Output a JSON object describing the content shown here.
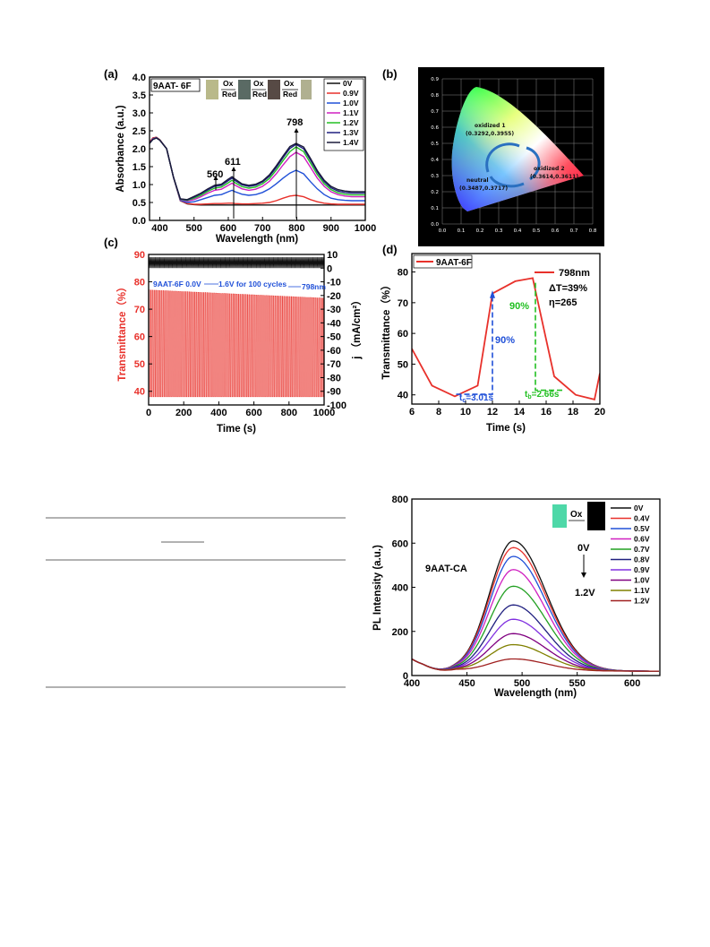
{
  "colors": {
    "black": "#000000",
    "red": "#e8312b",
    "blue": "#2050d8",
    "green": "#22c022",
    "magenta": "#d020c0",
    "navy": "#202080"
  },
  "panel_a": {
    "label": "(a)",
    "sample": "9AAT- 6F",
    "ox1": "Ox",
    "red1": "Red",
    "ox2": "Ox",
    "red2": "Red",
    "ox3": "Ox",
    "red3": "Red",
    "peaks": {
      "p560": "560",
      "p611": "611",
      "p798": "798"
    },
    "legend": [
      "0V",
      "0.9V",
      "1.0V",
      "1.1V",
      "1.2V",
      "1.3V",
      "1.4V"
    ],
    "xlabel": "Wavelength (nm)",
    "ylabel": "Absorbance (a.u.)",
    "xticks": [
      "400",
      "500",
      "600",
      "700",
      "800",
      "900",
      "1000"
    ],
    "yticks": [
      "0.0",
      "0.5",
      "1.0",
      "1.5",
      "2.0",
      "2.5",
      "3.0",
      "3.5",
      "4.0"
    ]
  },
  "panel_b": {
    "label": "(b)",
    "ox1_name": "oxidized 1",
    "ox1_coord": "(0.3292,0.3955)",
    "ox2_name": "oxidized 2",
    "ox2_coord": "(0.3614,0.3611)",
    "neu_name": "neutral",
    "neu_coord": "(0.3487,0.3717)",
    "xticks": [
      "0.0",
      "0.1",
      "0.2",
      "0.3",
      "0.4",
      "0.5",
      "0.6",
      "0.7",
      "0.8"
    ],
    "yticks": [
      "0.0",
      "0.1",
      "0.2",
      "0.3",
      "0.4",
      "0.5",
      "0.6",
      "0.7",
      "0.8",
      "0.9"
    ]
  },
  "panel_c": {
    "label": "(c)",
    "annotation_left": "9AAT-6F 0.0V",
    "annotation_mid": "1.6V for 100 cycles",
    "annotation_right": "798nm",
    "xlabel": "Time (s)",
    "ylabel_left": "Transmittance（%）",
    "ylabel_right": "j （mA/cm²）",
    "xticks": [
      "0",
      "200",
      "400",
      "600",
      "800",
      "1000"
    ],
    "yticks_left": [
      "40",
      "50",
      "60",
      "70",
      "80",
      "90"
    ],
    "yticks_right": [
      "10",
      "0",
      "-10",
      "-20",
      "-30",
      "-40",
      "-50",
      "-60",
      "-70",
      "-80",
      "-90",
      "-100"
    ]
  },
  "panel_d": {
    "label": "(d)",
    "legend_left": "9AAT-6F",
    "legend_right": "798nm",
    "delta_t": "ΔT=39%",
    "eta": "η=265",
    "pct_blue": "90%",
    "pct_green": "90%",
    "tc": "tᴄ=3.01s",
    "tb": "tₙ=2.66s",
    "tc_text": "t",
    "tc_sub": "c",
    "tc_val": "=3.01s",
    "tb_text": "t",
    "tb_sub": "b",
    "tb_val": "=2.66s",
    "xlabel": "Time (s)",
    "ylabel": "Transmittance（%）",
    "xticks": [
      "6",
      "8",
      "10",
      "12",
      "14",
      "16",
      "18",
      "20"
    ],
    "yticks": [
      "40",
      "50",
      "60",
      "70",
      "80"
    ]
  },
  "panel_e": {
    "sample": "9AAT-CA",
    "ox": "Ox",
    "arrow_top": "0V",
    "arrow_bottom": "1.2V",
    "legend": [
      "0V",
      "0.4V",
      "0.5V",
      "0.6V",
      "0.7V",
      "0.8V",
      "0.9V",
      "1.0V",
      "1.1V",
      "1.2V"
    ],
    "xlabel": "Wavelength (nm)",
    "ylabel": "PL Intensity (a.u.)",
    "xticks": [
      "400",
      "450",
      "500",
      "550",
      "600"
    ],
    "yticks": [
      "0",
      "200",
      "400",
      "600",
      "800"
    ]
  },
  "chart_data": [
    {
      "type": "line",
      "panel": "a",
      "xlabel": "Wavelength (nm)",
      "ylabel": "Absorbance (a.u.)",
      "xlim": [
        370,
        1000
      ],
      "ylim": [
        0,
        4.0
      ],
      "series": [
        {
          "name": "0V",
          "color": "#111111",
          "x": [
            370,
            380,
            390,
            400,
            420,
            440,
            460,
            480,
            500,
            520,
            540,
            560,
            580,
            600,
            611,
            620,
            640,
            660,
            680,
            700,
            720,
            740,
            760,
            780,
            798,
            820,
            840,
            860,
            880,
            900,
            920,
            940,
            960,
            980,
            1000
          ],
          "y": [
            2.18,
            2.3,
            2.32,
            2.25,
            2.0,
            1.2,
            0.55,
            0.46,
            0.44,
            0.43,
            0.43,
            0.43,
            0.43,
            0.43,
            0.43,
            0.43,
            0.43,
            0.43,
            0.43,
            0.43,
            0.43,
            0.43,
            0.43,
            0.43,
            0.43,
            0.43,
            0.43,
            0.43,
            0.43,
            0.43,
            0.43,
            0.43,
            0.43,
            0.43,
            0.43
          ]
        },
        {
          "name": "0.9V",
          "color": "#e8312b",
          "x": [
            370,
            380,
            390,
            400,
            420,
            440,
            460,
            480,
            500,
            520,
            540,
            560,
            580,
            600,
            611,
            620,
            640,
            660,
            680,
            700,
            720,
            740,
            760,
            780,
            798,
            820,
            840,
            860,
            880,
            900,
            920,
            940,
            960,
            980,
            1000
          ],
          "y": [
            2.18,
            2.3,
            2.32,
            2.25,
            2.0,
            1.2,
            0.55,
            0.47,
            0.45,
            0.45,
            0.46,
            0.47,
            0.47,
            0.48,
            0.48,
            0.47,
            0.46,
            0.46,
            0.47,
            0.48,
            0.5,
            0.55,
            0.62,
            0.68,
            0.7,
            0.66,
            0.58,
            0.52,
            0.48,
            0.46,
            0.45,
            0.45,
            0.45,
            0.45,
            0.45
          ]
        },
        {
          "name": "1.0V",
          "color": "#2050d8",
          "x": [
            370,
            380,
            390,
            400,
            420,
            440,
            460,
            480,
            500,
            520,
            540,
            560,
            580,
            600,
            611,
            620,
            640,
            660,
            680,
            700,
            720,
            740,
            760,
            780,
            798,
            820,
            840,
            860,
            880,
            900,
            920,
            940,
            960,
            980,
            1000
          ],
          "y": [
            2.16,
            2.28,
            2.31,
            2.24,
            2.0,
            1.2,
            0.56,
            0.5,
            0.52,
            0.58,
            0.64,
            0.7,
            0.72,
            0.8,
            0.84,
            0.8,
            0.73,
            0.7,
            0.72,
            0.78,
            0.88,
            1.02,
            1.18,
            1.32,
            1.4,
            1.3,
            1.08,
            0.88,
            0.72,
            0.62,
            0.58,
            0.56,
            0.55,
            0.55,
            0.55
          ]
        },
        {
          "name": "1.1V",
          "color": "#d020c0",
          "x": [
            370,
            380,
            390,
            400,
            420,
            440,
            460,
            480,
            500,
            520,
            540,
            560,
            580,
            600,
            611,
            620,
            640,
            660,
            680,
            700,
            720,
            740,
            760,
            780,
            798,
            820,
            840,
            860,
            880,
            900,
            920,
            940,
            960,
            980,
            1000
          ],
          "y": [
            2.16,
            2.27,
            2.3,
            2.24,
            2.0,
            1.2,
            0.58,
            0.54,
            0.58,
            0.66,
            0.76,
            0.84,
            0.87,
            0.98,
            1.04,
            0.98,
            0.88,
            0.84,
            0.87,
            0.95,
            1.09,
            1.3,
            1.55,
            1.78,
            1.9,
            1.78,
            1.48,
            1.18,
            0.95,
            0.8,
            0.72,
            0.68,
            0.66,
            0.66,
            0.66
          ]
        },
        {
          "name": "1.2V",
          "color": "#22c022",
          "x": [
            370,
            380,
            390,
            400,
            420,
            440,
            460,
            480,
            500,
            520,
            540,
            560,
            580,
            600,
            611,
            620,
            640,
            660,
            680,
            700,
            720,
            740,
            760,
            780,
            798,
            820,
            840,
            860,
            880,
            900,
            920,
            940,
            960,
            980,
            1000
          ],
          "y": [
            2.15,
            2.26,
            2.3,
            2.24,
            2.0,
            1.2,
            0.59,
            0.56,
            0.62,
            0.7,
            0.81,
            0.9,
            0.93,
            1.05,
            1.12,
            1.05,
            0.94,
            0.9,
            0.93,
            1.02,
            1.17,
            1.4,
            1.67,
            1.92,
            2.05,
            1.92,
            1.6,
            1.28,
            1.02,
            0.86,
            0.77,
            0.73,
            0.71,
            0.71,
            0.71
          ]
        },
        {
          "name": "1.3V",
          "color": "#202080",
          "x": [
            370,
            380,
            390,
            400,
            420,
            440,
            460,
            480,
            500,
            520,
            540,
            560,
            580,
            600,
            611,
            620,
            640,
            660,
            680,
            700,
            720,
            740,
            760,
            780,
            798,
            820,
            840,
            860,
            880,
            900,
            920,
            940,
            960,
            980,
            1000
          ],
          "y": [
            2.15,
            2.26,
            2.3,
            2.24,
            2.0,
            1.2,
            0.6,
            0.57,
            0.65,
            0.74,
            0.85,
            0.95,
            0.98,
            1.11,
            1.18,
            1.11,
            0.99,
            0.95,
            0.98,
            1.07,
            1.23,
            1.47,
            1.75,
            2.01,
            2.12,
            2.0,
            1.68,
            1.35,
            1.08,
            0.91,
            0.82,
            0.78,
            0.76,
            0.76,
            0.76
          ]
        },
        {
          "name": "1.4V",
          "color": "#1a1a3a",
          "x": [
            370,
            380,
            390,
            400,
            420,
            440,
            460,
            480,
            500,
            520,
            540,
            560,
            580,
            600,
            611,
            620,
            640,
            660,
            680,
            700,
            720,
            740,
            760,
            780,
            798,
            820,
            840,
            860,
            880,
            900,
            920,
            940,
            960,
            980,
            1000
          ],
          "y": [
            2.15,
            2.26,
            2.3,
            2.24,
            2.0,
            1.2,
            0.6,
            0.58,
            0.67,
            0.76,
            0.88,
            0.98,
            1.01,
            1.15,
            1.22,
            1.15,
            1.02,
            0.98,
            1.01,
            1.1,
            1.27,
            1.52,
            1.8,
            2.06,
            2.15,
            2.05,
            1.73,
            1.39,
            1.12,
            0.95,
            0.86,
            0.82,
            0.8,
            0.8,
            0.8
          ]
        }
      ]
    },
    {
      "type": "line",
      "panel": "c",
      "xlabel": "Time (s)",
      "xlim": [
        0,
        1000
      ],
      "ylim_left": [
        35,
        90
      ],
      "ylim_right": [
        -100,
        10
      ],
      "series": [
        {
          "name": "Transmittance",
          "color": "#e8312b",
          "cycles": 100,
          "period": 10,
          "min": 38,
          "max_start": 77,
          "max_end": 74
        },
        {
          "name": "j",
          "color": "#111111",
          "cycles": 100,
          "period": 10,
          "min": 0,
          "max": 8
        }
      ]
    },
    {
      "type": "line",
      "panel": "d",
      "xlabel": "Time (s)",
      "ylabel": "Transmittance（%）",
      "xlim": [
        6,
        20
      ],
      "ylim": [
        37,
        86
      ],
      "series": [
        {
          "name": "9AAT-6F",
          "color": "#e8312b",
          "x": [
            6,
            7.5,
            9.2,
            10.9,
            12.0,
            13.7,
            15.0,
            16.6,
            18.2,
            19.6,
            20
          ],
          "y": [
            55,
            43,
            39.5,
            43,
            73,
            77,
            78,
            46,
            40,
            38.5,
            47
          ]
        }
      ]
    },
    {
      "type": "line",
      "panel": "e",
      "xlabel": "Wavelength (nm)",
      "ylabel": "PL Intensity (a.u.)",
      "xlim": [
        400,
        625
      ],
      "ylim": [
        0,
        800
      ],
      "series": [
        {
          "name": "0V",
          "color": "#111111",
          "peak": 610
        },
        {
          "name": "0.4V",
          "color": "#e8312b",
          "peak": 580
        },
        {
          "name": "0.5V",
          "color": "#2050d8",
          "peak": 540
        },
        {
          "name": "0.6V",
          "color": "#d020c0",
          "peak": 480
        },
        {
          "name": "0.7V",
          "color": "#22a022",
          "peak": 405
        },
        {
          "name": "0.8V",
          "color": "#202080",
          "peak": 320
        },
        {
          "name": "0.9V",
          "color": "#8030e0",
          "peak": 255
        },
        {
          "name": "1.0V",
          "color": "#800080",
          "peak": 190
        },
        {
          "name": "1.1V",
          "color": "#808000",
          "peak": 140
        },
        {
          "name": "1.2V",
          "color": "#a02020",
          "peak": 75
        }
      ]
    }
  ]
}
